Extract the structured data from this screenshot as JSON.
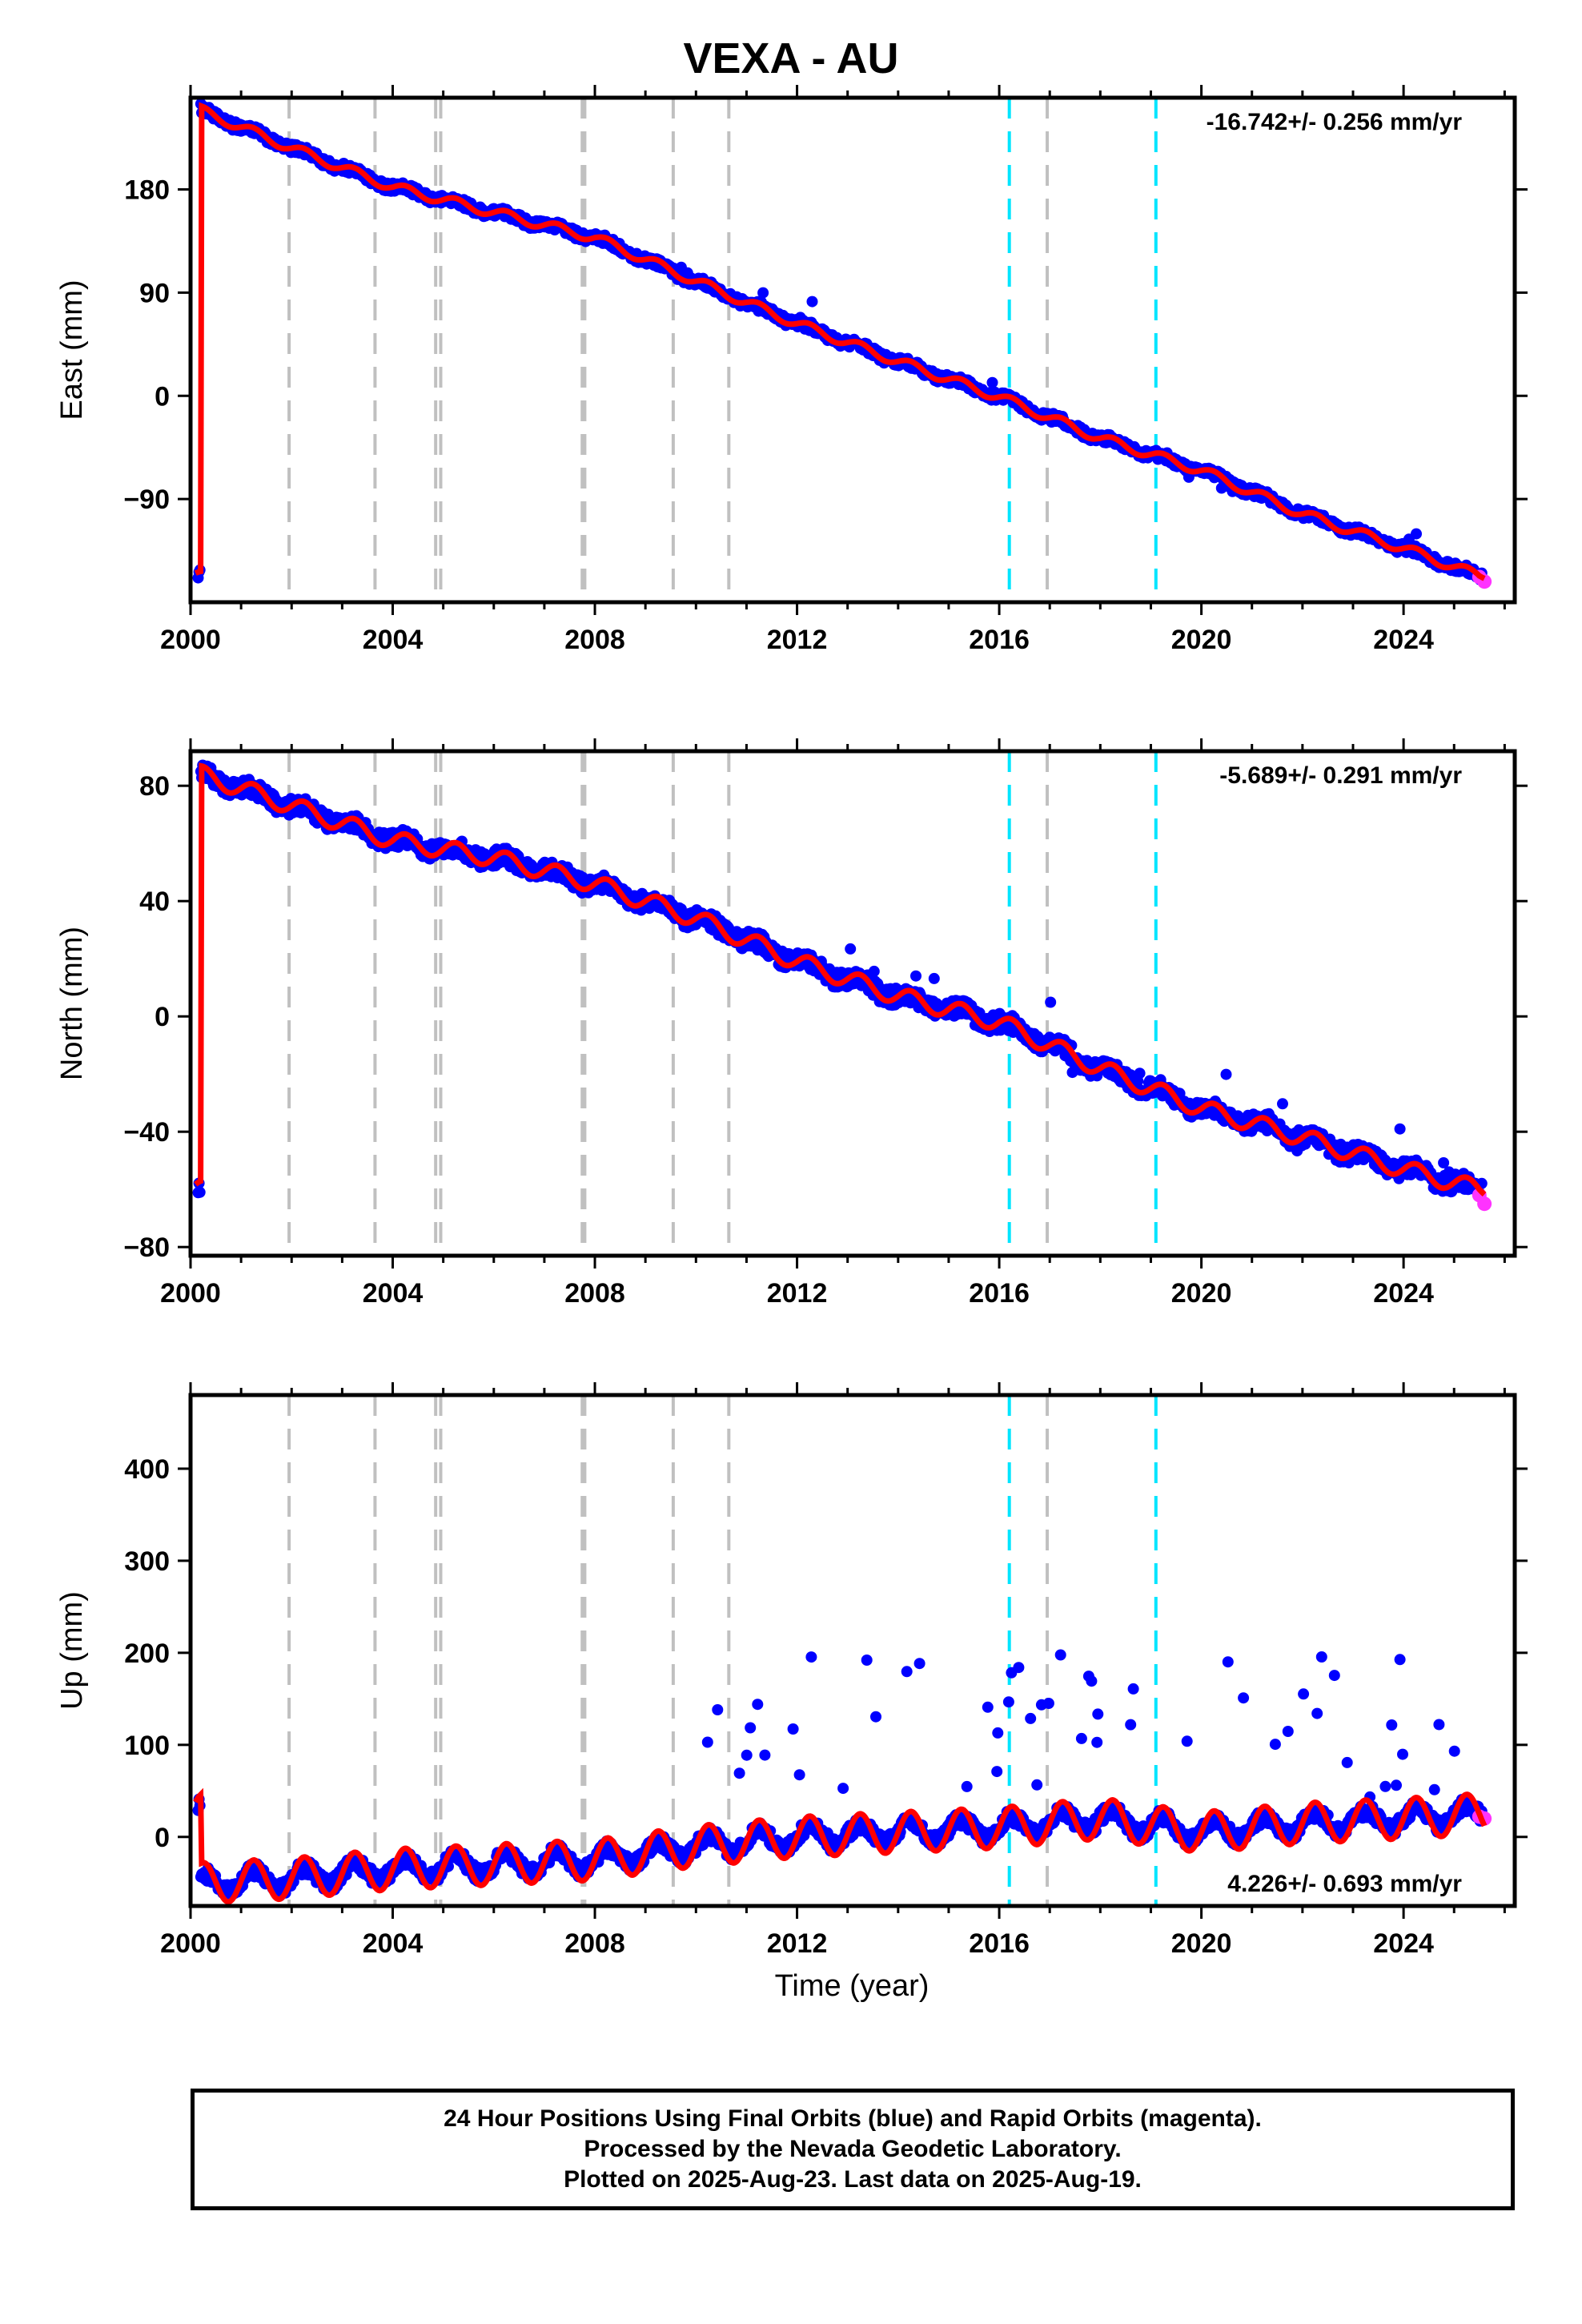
{
  "title": "VEXA - AU",
  "footer": {
    "line1": "24 Hour Positions Using Final Orbits (blue) and Rapid Orbits (magenta).",
    "line2": "Processed by the Nevada Geodetic Laboratory.",
    "line3": "Plotted on 2025-Aug-23. Last data on 2025-Aug-19."
  },
  "colors": {
    "final_orbits": "#0000ff",
    "rapid_orbits": "#ff33ff",
    "model": "#ff0000",
    "equipment_change": "#c0c0c0",
    "earthquake": "#00e5ff"
  },
  "xlabel": "Time (year)",
  "xticks": [
    "2000",
    "2004",
    "2008",
    "2012",
    "2016",
    "2020",
    "2024"
  ],
  "chart_data": [
    {
      "type": "scatter",
      "component": "east",
      "ylabel": "East (mm)",
      "xlim": [
        2000.0,
        2026.2
      ],
      "ylim": [
        -180,
        260
      ],
      "yticks": [
        "180",
        "90",
        "0",
        "−90"
      ],
      "ytick_values": [
        180,
        90,
        0,
        -90
      ],
      "rate_label": "-16.742+/- 0.256 mm/yr",
      "rate_position": "top-right",
      "trend": {
        "start_value": 248,
        "slope_mm_per_yr": -16.742,
        "annual_amplitude": 4,
        "spread": 4
      },
      "series": [
        {
          "name": "Final Orbits",
          "x": [
            2000.2,
            2002.0,
            2004.0,
            2006.0,
            2008.0,
            2010.0,
            2012.0,
            2014.0,
            2016.0,
            2018.0,
            2020.0,
            2022.0,
            2024.0,
            2025.5
          ],
          "y": [
            249,
            216,
            182,
            160,
            138,
            100,
            63,
            30,
            -1,
            -37,
            -65,
            -103,
            -133,
            -157
          ]
        },
        {
          "name": "Rapid Orbits",
          "x": [
            2025.5,
            2025.6
          ],
          "y": [
            -158,
            -162
          ]
        }
      ]
    },
    {
      "type": "scatter",
      "component": "north",
      "ylabel": "North (mm)",
      "xlim": [
        2000.0,
        2026.2
      ],
      "ylim": [
        -83,
        92
      ],
      "yticks": [
        "80",
        "40",
        "0",
        "−40",
        "−80"
      ],
      "ytick_values": [
        80,
        40,
        0,
        -40,
        -80
      ],
      "rate_label": "-5.689+/- 0.291 mm/yr",
      "rate_position": "top-right",
      "trend": {
        "start_value": 84,
        "slope_mm_per_yr": -5.689,
        "annual_amplitude": 3,
        "spread": 3
      },
      "series": [
        {
          "name": "Final Orbits",
          "x": [
            2000.2,
            2002.0,
            2004.0,
            2006.0,
            2008.0,
            2010.0,
            2012.0,
            2014.0,
            2016.0,
            2018.0,
            2020.0,
            2022.0,
            2024.0,
            2025.5
          ],
          "y": [
            84,
            73,
            61,
            55,
            46,
            34,
            19,
            7,
            -2,
            -18,
            -32,
            -42,
            -53,
            -60
          ]
        },
        {
          "name": "Rapid Orbits",
          "x": [
            2025.5,
            2025.6
          ],
          "y": [
            -62,
            -65
          ]
        }
      ]
    },
    {
      "type": "scatter",
      "component": "up",
      "ylabel": "Up (mm)",
      "xlim": [
        2000.0,
        2026.2
      ],
      "ylim": [
        -75,
        480
      ],
      "yticks": [
        "400",
        "300",
        "200",
        "100",
        "0"
      ],
      "ytick_values": [
        400,
        300,
        200,
        100,
        0
      ],
      "rate_label": "4.226+/- 0.693 mm/yr",
      "rate_position": "bottom-right",
      "trend": {
        "start_value": -40,
        "slope_mm_per_yr": 4.226,
        "annual_amplitude": 22,
        "spread": 8
      },
      "series": [
        {
          "name": "Final Orbits",
          "x": [
            2000.2,
            2002.0,
            2004.0,
            2006.0,
            2008.0,
            2010.0,
            2012.0,
            2014.0,
            2016.0,
            2018.0,
            2020.0,
            2022.0,
            2024.0,
            2025.5
          ],
          "y": [
            -50,
            -45,
            -35,
            -30,
            -25,
            -10,
            0,
            5,
            10,
            20,
            5,
            15,
            20,
            25
          ]
        },
        {
          "name": "Rapid Orbits",
          "x": [
            2025.5,
            2025.6
          ],
          "y": [
            22,
            20
          ]
        }
      ]
    }
  ],
  "equipment_changes": [
    2001.95,
    2003.65,
    2004.85,
    2004.95,
    2007.75,
    2007.8,
    2009.55,
    2010.65,
    2016.95
  ],
  "earthquakes": [
    2016.2,
    2019.1
  ]
}
